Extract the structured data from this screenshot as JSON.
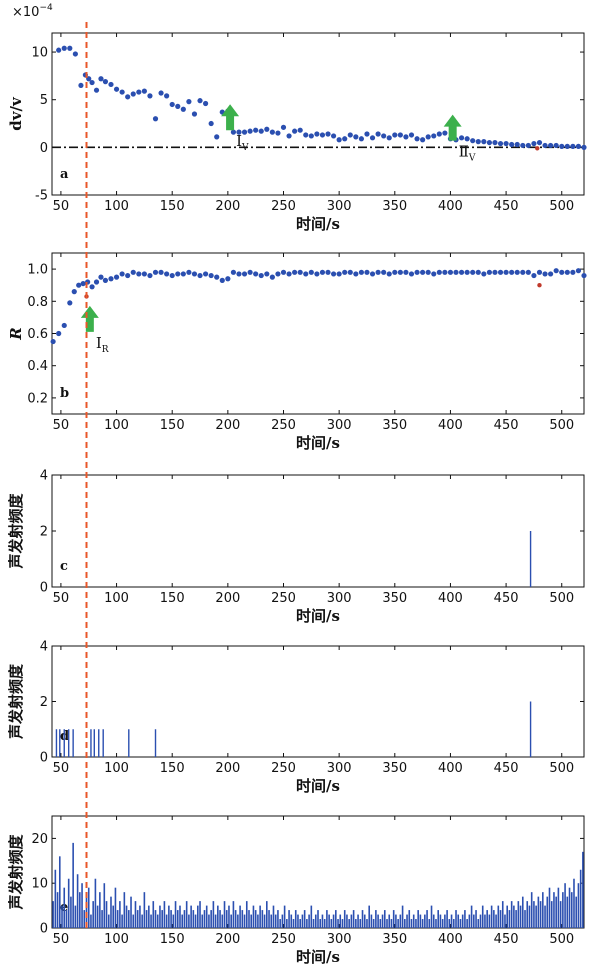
{
  "colors": {
    "point": "#2b4fb0",
    "outlier": "#c0392b",
    "bar": "#2b4fb0",
    "arrow": "#3cb04c",
    "marker_line": "#e8572a",
    "axis": "#111111"
  },
  "marker_time": 73,
  "chart_data": [
    {
      "type": "scatter",
      "panel": "a",
      "xlabel": "时间/s",
      "ylabel": "dv/v",
      "y_exponent_base": "×10",
      "y_exponent_power": "−4",
      "xlim": [
        42,
        520
      ],
      "ylim": [
        -5,
        12
      ],
      "xticks": [
        50,
        100,
        150,
        200,
        250,
        300,
        350,
        400,
        450,
        500
      ],
      "yticks": [
        -5,
        0,
        5,
        10
      ],
      "reference_line": 0,
      "annotations": [
        {
          "x": 202,
          "y": 1.8,
          "text": "I",
          "sub": "V"
        },
        {
          "x": 402,
          "y": 0.7,
          "text": "Ⅱ",
          "sub": "V"
        }
      ],
      "x": [
        48,
        53,
        58,
        63,
        68,
        72,
        75,
        78,
        82,
        86,
        90,
        95,
        100,
        105,
        110,
        115,
        120,
        125,
        130,
        135,
        140,
        145,
        150,
        155,
        160,
        165,
        170,
        175,
        180,
        185,
        190,
        195,
        200,
        205,
        210,
        215,
        220,
        225,
        230,
        235,
        240,
        245,
        250,
        255,
        260,
        265,
        270,
        275,
        280,
        285,
        290,
        295,
        300,
        305,
        310,
        315,
        320,
        325,
        330,
        335,
        340,
        345,
        350,
        355,
        360,
        365,
        370,
        375,
        380,
        385,
        390,
        395,
        400,
        405,
        410,
        415,
        420,
        425,
        430,
        435,
        440,
        445,
        450,
        455,
        460,
        465,
        470,
        475,
        480,
        485,
        490,
        495,
        500,
        505,
        510,
        515,
        520
      ],
      "y": [
        10.2,
        10.4,
        10.4,
        9.8,
        6.5,
        7.6,
        7.2,
        6.8,
        6.0,
        7.2,
        6.9,
        6.6,
        6.1,
        5.8,
        5.3,
        5.6,
        5.8,
        5.9,
        5.4,
        3.0,
        5.7,
        5.4,
        4.5,
        4.3,
        4.0,
        4.8,
        3.5,
        4.9,
        4.6,
        2.5,
        1.1,
        3.7,
        3.8,
        1.6,
        1.6,
        1.6,
        1.7,
        1.8,
        1.7,
        1.9,
        1.6,
        1.5,
        2.1,
        1.2,
        1.7,
        1.8,
        1.3,
        1.2,
        1.4,
        1.3,
        1.4,
        1.2,
        0.8,
        0.9,
        1.3,
        1.1,
        0.9,
        1.4,
        1.0,
        1.4,
        1.2,
        1.0,
        1.3,
        1.3,
        1.1,
        1.3,
        0.9,
        0.8,
        1.1,
        1.2,
        1.4,
        1.5,
        0.9,
        0.8,
        1.0,
        0.9,
        0.7,
        0.6,
        0.6,
        0.5,
        0.5,
        0.4,
        0.4,
        0.3,
        0.3,
        0.2,
        0.2,
        0.4,
        0.5,
        0.2,
        0.2,
        0.2,
        0.1,
        0.1,
        0.1,
        0.1,
        0.0
      ],
      "outliers": {
        "x": [
          478
        ],
        "y": [
          -0.1
        ]
      }
    },
    {
      "type": "scatter",
      "panel": "b",
      "xlabel": "时间/s",
      "ylabel": "R",
      "xlim": [
        42,
        520
      ],
      "ylim": [
        0.1,
        1.1
      ],
      "xticks": [
        50,
        100,
        150,
        200,
        250,
        300,
        350,
        400,
        450,
        500
      ],
      "yticks": [
        0.2,
        0.4,
        0.6,
        0.8,
        1.0
      ],
      "annotations": [
        {
          "x": 76,
          "y": 0.61,
          "text": "I",
          "sub": "R"
        }
      ],
      "x": [
        43,
        48,
        53,
        58,
        62,
        66,
        70,
        74,
        78,
        82,
        86,
        90,
        95,
        100,
        105,
        110,
        115,
        120,
        125,
        130,
        135,
        140,
        145,
        150,
        155,
        160,
        165,
        170,
        175,
        180,
        185,
        190,
        195,
        200,
        205,
        210,
        215,
        220,
        225,
        230,
        235,
        240,
        245,
        250,
        255,
        260,
        265,
        270,
        275,
        280,
        285,
        290,
        295,
        300,
        305,
        310,
        315,
        320,
        325,
        330,
        335,
        340,
        345,
        350,
        355,
        360,
        365,
        370,
        375,
        380,
        385,
        390,
        395,
        400,
        405,
        410,
        415,
        420,
        425,
        430,
        435,
        440,
        445,
        450,
        455,
        460,
        465,
        470,
        475,
        480,
        485,
        490,
        495,
        500,
        505,
        510,
        515,
        520
      ],
      "y": [
        0.55,
        0.6,
        0.65,
        0.79,
        0.86,
        0.9,
        0.91,
        0.92,
        0.89,
        0.92,
        0.95,
        0.93,
        0.94,
        0.95,
        0.97,
        0.96,
        0.98,
        0.97,
        0.97,
        0.96,
        0.98,
        0.98,
        0.97,
        0.96,
        0.97,
        0.97,
        0.98,
        0.97,
        0.96,
        0.97,
        0.96,
        0.95,
        0.93,
        0.94,
        0.98,
        0.97,
        0.97,
        0.98,
        0.97,
        0.96,
        0.97,
        0.95,
        0.97,
        0.98,
        0.97,
        0.98,
        0.98,
        0.97,
        0.98,
        0.97,
        0.98,
        0.98,
        0.97,
        0.97,
        0.98,
        0.98,
        0.97,
        0.98,
        0.98,
        0.97,
        0.98,
        0.98,
        0.97,
        0.98,
        0.98,
        0.98,
        0.97,
        0.98,
        0.98,
        0.98,
        0.97,
        0.98,
        0.98,
        0.98,
        0.98,
        0.98,
        0.98,
        0.98,
        0.98,
        0.97,
        0.98,
        0.98,
        0.98,
        0.98,
        0.98,
        0.98,
        0.98,
        0.98,
        0.96,
        0.98,
        0.97,
        0.97,
        0.99,
        0.98,
        0.98,
        0.98,
        0.99,
        0.96
      ],
      "outliers": {
        "x": [
          73,
          480
        ],
        "y": [
          0.83,
          0.9
        ]
      }
    },
    {
      "type": "bar",
      "panel": "c",
      "xlabel": "时间/s",
      "ylabel": "声发射频度",
      "xlim": [
        42,
        520
      ],
      "ylim": [
        0,
        4
      ],
      "xticks": [
        50,
        100,
        150,
        200,
        250,
        300,
        350,
        400,
        450,
        500
      ],
      "yticks": [
        0,
        2,
        4
      ],
      "x": [
        472
      ],
      "y": [
        2
      ]
    },
    {
      "type": "bar",
      "panel": "d",
      "xlabel": "时间/s",
      "ylabel": "声发射频度",
      "xlim": [
        42,
        520
      ],
      "ylim": [
        0,
        4
      ],
      "xticks": [
        50,
        100,
        150,
        200,
        250,
        300,
        350,
        400,
        450,
        500
      ],
      "yticks": [
        0,
        2,
        4
      ],
      "x": [
        46,
        49,
        53,
        57,
        61,
        77,
        80,
        84,
        88,
        111,
        135,
        472
      ],
      "y": [
        1,
        1,
        1,
        1,
        1,
        1,
        1,
        1,
        1,
        1,
        1,
        2
      ]
    },
    {
      "type": "bar",
      "panel": "e",
      "xlabel": "时间/s",
      "ylabel": "声发射频度",
      "xlim": [
        42,
        520
      ],
      "ylim": [
        0,
        25
      ],
      "xticks": [
        50,
        100,
        150,
        200,
        250,
        300,
        350,
        400,
        450,
        500
      ],
      "yticks": [
        0,
        10,
        20
      ],
      "x": [
        43,
        45,
        47,
        49,
        51,
        53,
        55,
        57,
        59,
        61,
        63,
        65,
        67,
        69,
        71,
        73,
        75,
        77,
        79,
        81,
        83,
        85,
        87,
        89,
        91,
        93,
        95,
        97,
        99,
        101,
        103,
        105,
        107,
        109,
        111,
        113,
        115,
        117,
        119,
        121,
        123,
        125,
        127,
        129,
        131,
        133,
        135,
        137,
        139,
        141,
        143,
        145,
        147,
        149,
        151,
        153,
        155,
        157,
        159,
        161,
        163,
        165,
        167,
        169,
        171,
        173,
        175,
        177,
        179,
        181,
        183,
        185,
        187,
        189,
        191,
        193,
        195,
        197,
        199,
        201,
        203,
        205,
        207,
        209,
        211,
        213,
        215,
        217,
        219,
        221,
        223,
        225,
        227,
        229,
        231,
        233,
        235,
        237,
        239,
        241,
        243,
        245,
        247,
        249,
        251,
        253,
        255,
        257,
        259,
        261,
        263,
        265,
        267,
        269,
        271,
        273,
        275,
        277,
        279,
        281,
        283,
        285,
        287,
        289,
        291,
        293,
        295,
        297,
        299,
        301,
        303,
        305,
        307,
        309,
        311,
        313,
        315,
        317,
        319,
        321,
        323,
        325,
        327,
        329,
        331,
        333,
        335,
        337,
        339,
        341,
        343,
        345,
        347,
        349,
        351,
        353,
        355,
        357,
        359,
        361,
        363,
        365,
        367,
        369,
        371,
        373,
        375,
        377,
        379,
        381,
        383,
        385,
        387,
        389,
        391,
        393,
        395,
        397,
        399,
        401,
        403,
        405,
        407,
        409,
        411,
        413,
        415,
        417,
        419,
        421,
        423,
        425,
        427,
        429,
        431,
        433,
        435,
        437,
        439,
        441,
        443,
        445,
        447,
        449,
        451,
        453,
        455,
        457,
        459,
        461,
        463,
        465,
        467,
        469,
        471,
        473,
        475,
        477,
        479,
        481,
        483,
        485,
        487,
        489,
        491,
        493,
        495,
        497,
        499,
        501,
        503,
        505,
        507,
        509,
        511,
        513,
        515,
        517,
        519
      ],
      "y": [
        6,
        13,
        8,
        16,
        5,
        9,
        4,
        11,
        7,
        19,
        5,
        12,
        8,
        10,
        4,
        7,
        9,
        3,
        6,
        11,
        5,
        8,
        4,
        10,
        6,
        3,
        7,
        5,
        9,
        4,
        6,
        3,
        8,
        5,
        4,
        7,
        3,
        6,
        4,
        5,
        3,
        8,
        4,
        5,
        3,
        6,
        4,
        3,
        5,
        4,
        6,
        3,
        5,
        4,
        3,
        6,
        4,
        5,
        3,
        4,
        6,
        3,
        5,
        4,
        3,
        5,
        6,
        3,
        4,
        5,
        3,
        4,
        6,
        3,
        5,
        4,
        3,
        6,
        4,
        5,
        3,
        6,
        4,
        3,
        5,
        4,
        3,
        6,
        4,
        3,
        5,
        4,
        3,
        5,
        4,
        3,
        6,
        4,
        3,
        5,
        3,
        4,
        2,
        3,
        5,
        2,
        4,
        3,
        2,
        4,
        3,
        2,
        3,
        4,
        2,
        3,
        5,
        2,
        3,
        4,
        2,
        3,
        2,
        4,
        3,
        2,
        3,
        4,
        2,
        3,
        2,
        4,
        3,
        2,
        3,
        4,
        2,
        3,
        2,
        4,
        3,
        2,
        5,
        3,
        2,
        4,
        3,
        2,
        3,
        4,
        2,
        3,
        2,
        4,
        3,
        2,
        3,
        5,
        2,
        3,
        4,
        2,
        3,
        2,
        4,
        3,
        2,
        3,
        4,
        2,
        5,
        3,
        2,
        4,
        3,
        2,
        3,
        4,
        2,
        3,
        2,
        4,
        3,
        2,
        3,
        4,
        2,
        3,
        5,
        3,
        4,
        2,
        3,
        5,
        3,
        4,
        3,
        5,
        4,
        3,
        5,
        4,
        6,
        3,
        5,
        4,
        6,
        5,
        4,
        6,
        5,
        7,
        4,
        6,
        5,
        8,
        6,
        5,
        7,
        6,
        8,
        5,
        7,
        9,
        6,
        8,
        7,
        9,
        6,
        8,
        10,
        7,
        9,
        8,
        11,
        7,
        10,
        13,
        17
      ]
    }
  ]
}
